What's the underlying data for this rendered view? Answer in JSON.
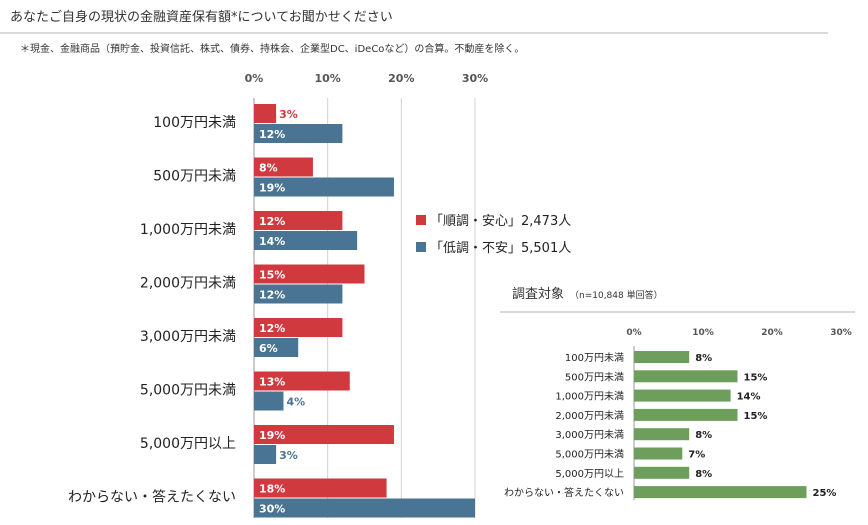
{
  "title": "あなたご自身の現状の金融資産保有額*についてお聞かせください",
  "note": "＊現金、金融商品（預貯金、投資信託、株式、債券、持株会、企業型DC、iDeCoなど）の合算。不動産を除く。",
  "colors": {
    "red": "#d03a3f",
    "blue": "#4a7493",
    "green": "#6e9e5c",
    "grid": "#d0d0d0"
  },
  "chart_data": [
    {
      "type": "bar",
      "orientation": "horizontal",
      "xlim": [
        0,
        30
      ],
      "ticks": [
        "0%",
        "10%",
        "20%",
        "30%"
      ],
      "grid": true,
      "legend_position": "right",
      "categories": [
        "100万円未満",
        "500万円未満",
        "1,000万円未満",
        "2,000万円未満",
        "3,000万円未満",
        "5,000万円未満",
        "5,000万円以上",
        "わからない・答えたくない"
      ],
      "series": [
        {
          "name": "「順調・安心」2,473人",
          "color": "#d03a3f",
          "values": [
            3,
            8,
            12,
            15,
            12,
            13,
            19,
            18
          ],
          "labels": [
            "3%",
            "8%",
            "12%",
            "15%",
            "12%",
            "13%",
            "19%",
            "18%"
          ]
        },
        {
          "name": "「低調・不安」5,501人",
          "color": "#4a7493",
          "values": [
            12,
            19,
            14,
            12,
            6,
            4,
            3,
            30
          ],
          "labels": [
            "12%",
            "19%",
            "14%",
            "12%",
            "6%",
            "4%",
            "3%",
            "30%"
          ]
        }
      ]
    },
    {
      "type": "bar",
      "orientation": "horizontal",
      "title": "調査対象",
      "subtitle": "（n=10,848 単回答）",
      "xlim": [
        0,
        30
      ],
      "ticks": [
        "0%",
        "10%",
        "20%",
        "30%"
      ],
      "grid": false,
      "categories": [
        "100万円未満",
        "500万円未満",
        "1,000万円未満",
        "2,000万円未満",
        "3,000万円未満",
        "5,000万円未満",
        "5,000万円以上",
        "わからない・答えたくない"
      ],
      "series": [
        {
          "color": "#6e9e5c",
          "values": [
            8,
            15,
            14,
            15,
            8,
            7,
            8,
            25
          ],
          "labels": [
            "8%",
            "15%",
            "14%",
            "15%",
            "8%",
            "7%",
            "8%",
            "25%"
          ]
        }
      ]
    }
  ]
}
